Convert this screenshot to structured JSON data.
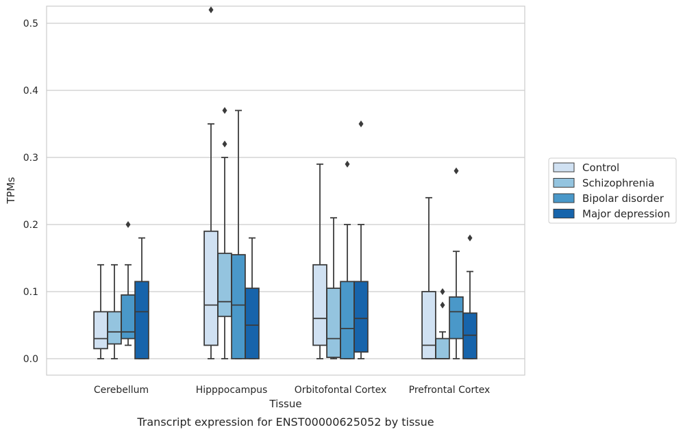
{
  "chart_data": {
    "type": "box",
    "xlabel": "Tissue",
    "ylabel": "TPMs",
    "caption": "Transcript expression for ENST00000625052 by tissue",
    "categories": [
      "Cerebellum",
      "Hipppocampus",
      "Orbitofontal Cortex",
      "Prefrontal Cortex"
    ],
    "ylim": [
      -0.025,
      0.545
    ],
    "yticks": [
      0.0,
      0.1,
      0.2,
      0.3,
      0.4,
      0.5
    ],
    "ytick_labels": [
      "0.0",
      "0.1",
      "0.2",
      "0.3",
      "0.4",
      "0.5"
    ],
    "grid": "horizontal",
    "legend_position": "right",
    "series": [
      {
        "name": "Control",
        "color": "#d0e1f2",
        "boxes": [
          {
            "min": 0.0,
            "q1": 0.015,
            "median": 0.03,
            "q3": 0.07,
            "max": 0.14,
            "outliers": []
          },
          {
            "min": 0.0,
            "q1": 0.02,
            "median": 0.08,
            "q3": 0.19,
            "max": 0.35,
            "outliers": [
              0.52
            ]
          },
          {
            "min": 0.0,
            "q1": 0.02,
            "median": 0.06,
            "q3": 0.14,
            "max": 0.29,
            "outliers": []
          },
          {
            "min": 0.0,
            "q1": 0.0,
            "median": 0.02,
            "q3": 0.1,
            "max": 0.24,
            "outliers": []
          }
        ]
      },
      {
        "name": "Schizophrenia",
        "color": "#94c4df",
        "boxes": [
          {
            "min": 0.0,
            "q1": 0.022,
            "median": 0.04,
            "q3": 0.07,
            "max": 0.14,
            "outliers": []
          },
          {
            "min": 0.0,
            "q1": 0.063,
            "median": 0.085,
            "q3": 0.157,
            "max": 0.3,
            "outliers": [
              0.32,
              0.37
            ]
          },
          {
            "min": 0.0,
            "q1": 0.002,
            "median": 0.03,
            "q3": 0.105,
            "max": 0.21,
            "outliers": []
          },
          {
            "min": 0.0,
            "q1": 0.0,
            "median": 0.0,
            "q3": 0.03,
            "max": 0.04,
            "outliers": [
              0.08,
              0.1
            ]
          }
        ]
      },
      {
        "name": "Bipolar disorder",
        "color": "#4a98c9",
        "boxes": [
          {
            "min": 0.02,
            "q1": 0.03,
            "median": 0.04,
            "q3": 0.095,
            "max": 0.14,
            "outliers": [
              0.2
            ]
          },
          {
            "min": 0.0,
            "q1": 0.0,
            "median": 0.08,
            "q3": 0.155,
            "max": 0.37,
            "outliers": []
          },
          {
            "min": 0.0,
            "q1": 0.0,
            "median": 0.045,
            "q3": 0.115,
            "max": 0.2,
            "outliers": [
              0.29
            ]
          },
          {
            "min": 0.0,
            "q1": 0.03,
            "median": 0.07,
            "q3": 0.092,
            "max": 0.16,
            "outliers": [
              0.28
            ]
          }
        ]
      },
      {
        "name": "Major depression",
        "color": "#1764ab",
        "boxes": [
          {
            "min": 0.0,
            "q1": 0.0,
            "median": 0.07,
            "q3": 0.115,
            "max": 0.18,
            "outliers": []
          },
          {
            "min": 0.0,
            "q1": 0.0,
            "median": 0.05,
            "q3": 0.105,
            "max": 0.18,
            "outliers": []
          },
          {
            "min": 0.0,
            "q1": 0.01,
            "median": 0.06,
            "q3": 0.115,
            "max": 0.2,
            "outliers": [
              0.35
            ]
          },
          {
            "min": 0.0,
            "q1": 0.0,
            "median": 0.035,
            "q3": 0.068,
            "max": 0.13,
            "outliers": [
              0.18
            ]
          }
        ]
      }
    ]
  }
}
